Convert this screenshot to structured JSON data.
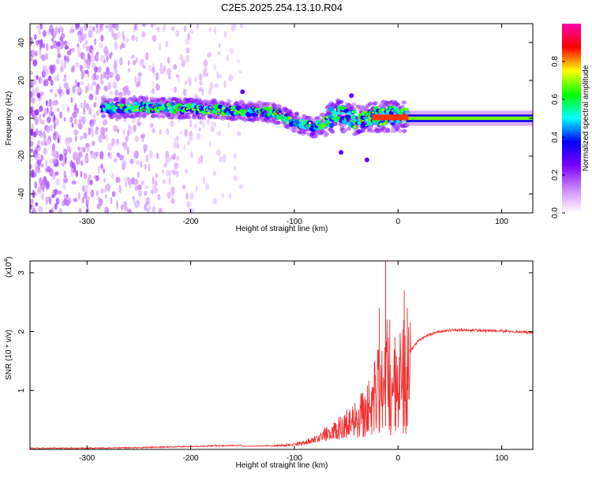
{
  "title": "C2E5.2025.254.13.10.R04",
  "chart_data": [
    {
      "type": "heatmap",
      "name": "spectrogram",
      "xlabel": "Height of straight line (km)",
      "ylabel": "Frequency (Hz)",
      "xlim": [
        -355,
        130
      ],
      "ylim": [
        -50,
        50
      ],
      "xticks": [
        -300,
        -200,
        -100,
        0,
        100
      ],
      "yticks": [
        -40,
        -20,
        0,
        20,
        40
      ],
      "colorbar": {
        "label": "Normalized spectral amplitude",
        "range": [
          0,
          1
        ],
        "ticks": [
          "0.0",
          "0.2",
          "0.4",
          "0.6",
          "0.8"
        ],
        "tick_values": [
          0,
          0.2,
          0.4,
          0.6,
          0.8
        ],
        "colors": [
          "#ffffff",
          "#cc88ff",
          "#7a00ff",
          "#0000ff",
          "#00ffff",
          "#00ff00",
          "#ffff00",
          "#ff0000",
          "#ff00aa"
        ]
      },
      "features": {
        "noise_region_km": [
          -355,
          -220
        ],
        "signal_track": [
          {
            "x": -285,
            "y": 5
          },
          {
            "x": -250,
            "y": 6
          },
          {
            "x": -200,
            "y": 5
          },
          {
            "x": -150,
            "y": 4
          },
          {
            "x": -120,
            "y": 3
          },
          {
            "x": -100,
            "y": -2
          },
          {
            "x": -80,
            "y": -5
          },
          {
            "x": -60,
            "y": 2
          },
          {
            "x": -40,
            "y": -1
          },
          {
            "x": -20,
            "y": 1
          },
          {
            "x": 0,
            "y": 1
          },
          {
            "x": 10,
            "y": 0
          },
          {
            "x": 130,
            "y": 0
          }
        ]
      }
    },
    {
      "type": "line",
      "name": "snr",
      "xlabel": "Height of straight line (km)",
      "ylabel": "SNR (10 * v/v)",
      "y_multiplier": "(x10",
      "y_multiplier_exp": "4",
      "y_multiplier_close": ")",
      "xlim": [
        -355,
        130
      ],
      "ylim": [
        0,
        3.2
      ],
      "xticks": [
        -300,
        -200,
        -100,
        0,
        100
      ],
      "yticks": [
        1,
        2,
        3
      ],
      "color": "#ee3333",
      "series": [
        {
          "name": "SNR",
          "x": [
            -355,
            -300,
            -250,
            -200,
            -150,
            -120,
            -100,
            -90,
            -80,
            -70,
            -60,
            -50,
            -40,
            -30,
            -25,
            -20,
            -15,
            -12,
            -10,
            -5,
            0,
            5,
            8,
            10,
            15,
            20,
            30,
            40,
            50,
            60,
            80,
            100,
            120,
            130
          ],
          "y": [
            0.02,
            0.02,
            0.03,
            0.05,
            0.07,
            0.08,
            0.1,
            0.15,
            0.2,
            0.3,
            0.4,
            0.5,
            0.6,
            0.75,
            0.9,
            1.1,
            1.3,
            1.2,
            1.5,
            1.2,
            1.0,
            1.5,
            1.2,
            1.6,
            1.75,
            1.85,
            1.95,
            2.0,
            2.02,
            2.03,
            2.02,
            2.01,
            1.99,
            1.98
          ]
        }
      ],
      "spikes": [
        {
          "x": -12,
          "y": 3.2
        },
        {
          "x": -18,
          "y": 2.4
        },
        {
          "x": -8,
          "y": 2.2
        },
        {
          "x": 6,
          "y": 2.7
        },
        {
          "x": 9,
          "y": 2.4
        },
        {
          "x": -3,
          "y": 1.9
        }
      ]
    }
  ]
}
